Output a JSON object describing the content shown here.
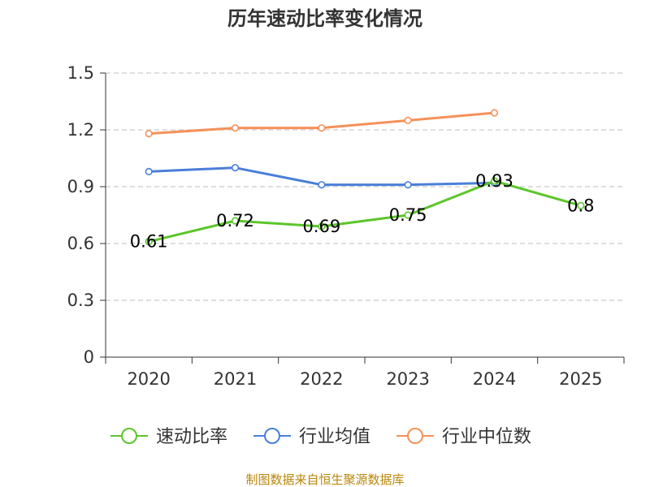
{
  "chart_data": {
    "type": "line",
    "title": "历年速动比率变化情况",
    "categories": [
      "2020",
      "2021",
      "2022",
      "2023",
      "2024",
      "2025"
    ],
    "ylim": [
      0,
      1.5
    ],
    "yticks": [
      "0",
      "0.3",
      "0.6",
      "0.9",
      "1.2",
      "1.5"
    ],
    "ytick_values": [
      0,
      0.3,
      0.6,
      0.9,
      1.2,
      1.5
    ],
    "grid": true,
    "legend_position": "bottom",
    "series": [
      {
        "name": "速动比率",
        "color": "#5cc52a",
        "values": [
          0.61,
          0.72,
          0.69,
          0.75,
          0.93,
          0.8
        ],
        "labels": [
          "0.61",
          "0.72",
          "0.69",
          "0.75",
          "0.93",
          "0.8"
        ]
      },
      {
        "name": "行业均值",
        "color": "#4a7fd8",
        "values": [
          0.98,
          1.0,
          0.91,
          0.91,
          0.92,
          null
        ]
      },
      {
        "name": "行业中位数",
        "color": "#f5915a",
        "values": [
          1.18,
          1.21,
          1.21,
          1.25,
          1.29,
          null
        ]
      }
    ]
  },
  "source": "制图数据来自恒生聚源数据库"
}
